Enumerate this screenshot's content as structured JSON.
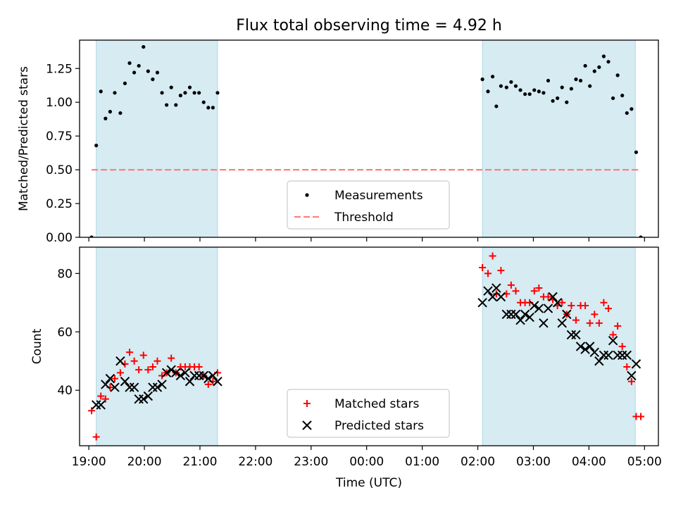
{
  "title": "Flux total observing time = 4.92 h",
  "colors": {
    "shade": "#add8e6",
    "measure": "#000000",
    "threshold": "#ff7f7f",
    "matched": "#ff0000",
    "predicted": "#000000"
  },
  "chart_data": [
    {
      "type": "scatter",
      "ylabel": "Matched/Predicted stars",
      "xlim": [
        "2023-01-01T18:50",
        "2023-01-02T05:15"
      ],
      "ylim": [
        0,
        1.46
      ],
      "yticks": [
        "0.00",
        "0.25",
        "0.50",
        "0.75",
        "1.00",
        "1.25"
      ],
      "ytick_values": [
        0,
        0.25,
        0.5,
        0.75,
        1.0,
        1.25
      ],
      "shaded_ranges": [
        [
          "2023-01-01T19:08",
          "2023-01-01T21:19"
        ],
        [
          "2023-01-02T02:05",
          "2023-01-02T04:50"
        ]
      ],
      "legend": {
        "placement": "lower center",
        "entries": [
          "Measurements",
          "Threshold"
        ]
      },
      "series": [
        {
          "name": "Measurements",
          "marker": "dot",
          "points": [
            [
              "2023-01-01T19:03",
              0.0
            ],
            [
              "2023-01-01T19:08",
              0.68
            ],
            [
              "2023-01-01T19:13",
              1.08
            ],
            [
              "2023-01-01T19:18",
              0.88
            ],
            [
              "2023-01-01T19:23",
              0.93
            ],
            [
              "2023-01-01T19:28",
              1.07
            ],
            [
              "2023-01-01T19:34",
              0.92
            ],
            [
              "2023-01-01T19:39",
              1.14
            ],
            [
              "2023-01-01T19:44",
              1.29
            ],
            [
              "2023-01-01T19:49",
              1.22
            ],
            [
              "2023-01-01T19:54",
              1.27
            ],
            [
              "2023-01-01T19:59",
              1.41
            ],
            [
              "2023-01-01T20:04",
              1.23
            ],
            [
              "2023-01-01T20:09",
              1.17
            ],
            [
              "2023-01-01T20:14",
              1.22
            ],
            [
              "2023-01-01T20:19",
              1.07
            ],
            [
              "2023-01-01T20:24",
              0.98
            ],
            [
              "2023-01-01T20:29",
              1.11
            ],
            [
              "2023-01-01T20:34",
              0.98
            ],
            [
              "2023-01-01T20:39",
              1.05
            ],
            [
              "2023-01-01T20:44",
              1.07
            ],
            [
              "2023-01-01T20:49",
              1.11
            ],
            [
              "2023-01-01T20:54",
              1.07
            ],
            [
              "2023-01-01T20:59",
              1.07
            ],
            [
              "2023-01-01T21:04",
              1.0
            ],
            [
              "2023-01-01T21:09",
              0.96
            ],
            [
              "2023-01-01T21:14",
              0.96
            ],
            [
              "2023-01-01T21:19",
              1.07
            ],
            [
              "2023-01-02T02:05",
              1.17
            ],
            [
              "2023-01-02T02:11",
              1.08
            ],
            [
              "2023-01-02T02:16",
              1.19
            ],
            [
              "2023-01-02T02:20",
              0.97
            ],
            [
              "2023-01-02T02:25",
              1.12
            ],
            [
              "2023-01-02T02:31",
              1.11
            ],
            [
              "2023-01-02T02:36",
              1.15
            ],
            [
              "2023-01-02T02:41",
              1.12
            ],
            [
              "2023-01-02T02:46",
              1.09
            ],
            [
              "2023-01-02T02:51",
              1.06
            ],
            [
              "2023-01-02T02:56",
              1.06
            ],
            [
              "2023-01-02T03:01",
              1.09
            ],
            [
              "2023-01-02T03:06",
              1.08
            ],
            [
              "2023-01-02T03:11",
              1.07
            ],
            [
              "2023-01-02T03:16",
              1.16
            ],
            [
              "2023-01-02T03:21",
              1.01
            ],
            [
              "2023-01-02T03:26",
              1.03
            ],
            [
              "2023-01-02T03:31",
              1.11
            ],
            [
              "2023-01-02T03:36",
              1.0
            ],
            [
              "2023-01-02T03:41",
              1.1
            ],
            [
              "2023-01-02T03:46",
              1.17
            ],
            [
              "2023-01-02T03:51",
              1.16
            ],
            [
              "2023-01-02T03:56",
              1.27
            ],
            [
              "2023-01-02T04:01",
              1.12
            ],
            [
              "2023-01-02T04:06",
              1.23
            ],
            [
              "2023-01-02T04:11",
              1.26
            ],
            [
              "2023-01-02T04:16",
              1.34
            ],
            [
              "2023-01-02T04:21",
              1.3
            ],
            [
              "2023-01-02T04:26",
              1.03
            ],
            [
              "2023-01-02T04:31",
              1.2
            ],
            [
              "2023-01-02T04:36",
              1.05
            ],
            [
              "2023-01-02T04:41",
              0.92
            ],
            [
              "2023-01-02T04:46",
              0.95
            ],
            [
              "2023-01-02T04:51",
              0.63
            ],
            [
              "2023-01-02T04:56",
              0.0
            ]
          ]
        },
        {
          "name": "Threshold",
          "marker": "dashed-line",
          "points": [
            [
              "2023-01-01T19:03",
              0.5
            ],
            [
              "2023-01-02T04:56",
              0.5
            ]
          ]
        }
      ]
    },
    {
      "type": "scatter",
      "ylabel": "Count",
      "xlabel": "Time (UTC)",
      "xlim": [
        "2023-01-01T18:50",
        "2023-01-02T05:15"
      ],
      "ylim": [
        21,
        89
      ],
      "yticks": [
        "40",
        "60",
        "80"
      ],
      "ytick_values": [
        40,
        60,
        80
      ],
      "xticks": [
        "19:00",
        "20:00",
        "21:00",
        "22:00",
        "23:00",
        "00:00",
        "01:00",
        "02:00",
        "03:00",
        "04:00",
        "05:00"
      ],
      "xtick_values": [
        "2023-01-01T19:00",
        "2023-01-01T20:00",
        "2023-01-01T21:00",
        "2023-01-01T22:00",
        "2023-01-01T23:00",
        "2023-01-02T00:00",
        "2023-01-02T01:00",
        "2023-01-02T02:00",
        "2023-01-02T03:00",
        "2023-01-02T04:00",
        "2023-01-02T05:00"
      ],
      "shaded_ranges": [
        [
          "2023-01-01T19:08",
          "2023-01-01T21:19"
        ],
        [
          "2023-01-02T02:05",
          "2023-01-02T04:50"
        ]
      ],
      "legend": {
        "placement": "lower center",
        "entries": [
          "Matched stars",
          "Predicted stars"
        ]
      },
      "series": [
        {
          "name": "Matched stars",
          "marker": "plus",
          "points": [
            [
              "2023-01-01T19:03",
              33
            ],
            [
              "2023-01-01T19:08",
              24
            ],
            [
              "2023-01-01T19:13",
              38
            ],
            [
              "2023-01-01T19:18",
              37
            ],
            [
              "2023-01-01T19:23",
              41
            ],
            [
              "2023-01-01T19:28",
              44
            ],
            [
              "2023-01-01T19:34",
              46
            ],
            [
              "2023-01-01T19:39",
              49
            ],
            [
              "2023-01-01T19:44",
              53
            ],
            [
              "2023-01-01T19:49",
              50
            ],
            [
              "2023-01-01T19:54",
              47
            ],
            [
              "2023-01-01T19:59",
              52
            ],
            [
              "2023-01-01T20:04",
              47
            ],
            [
              "2023-01-01T20:09",
              48
            ],
            [
              "2023-01-01T20:14",
              50
            ],
            [
              "2023-01-01T20:19",
              45
            ],
            [
              "2023-01-01T20:24",
              46
            ],
            [
              "2023-01-01T20:29",
              51
            ],
            [
              "2023-01-01T20:34",
              46
            ],
            [
              "2023-01-01T20:39",
              48
            ],
            [
              "2023-01-01T20:44",
              48
            ],
            [
              "2023-01-01T20:49",
              48
            ],
            [
              "2023-01-01T20:54",
              48
            ],
            [
              "2023-01-01T20:59",
              48
            ],
            [
              "2023-01-01T21:04",
              45
            ],
            [
              "2023-01-01T21:09",
              42
            ],
            [
              "2023-01-01T21:14",
              43
            ],
            [
              "2023-01-01T21:19",
              46
            ],
            [
              "2023-01-02T02:05",
              82
            ],
            [
              "2023-01-02T02:11",
              80
            ],
            [
              "2023-01-02T02:16",
              86
            ],
            [
              "2023-01-02T02:20",
              73
            ],
            [
              "2023-01-02T02:25",
              81
            ],
            [
              "2023-01-02T02:31",
              73
            ],
            [
              "2023-01-02T02:36",
              76
            ],
            [
              "2023-01-02T02:41",
              74
            ],
            [
              "2023-01-02T02:46",
              70
            ],
            [
              "2023-01-02T02:51",
              70
            ],
            [
              "2023-01-02T02:56",
              70
            ],
            [
              "2023-01-02T03:01",
              74
            ],
            [
              "2023-01-02T03:06",
              75
            ],
            [
              "2023-01-02T03:11",
              72
            ],
            [
              "2023-01-02T03:16",
              72
            ],
            [
              "2023-01-02T03:21",
              71
            ],
            [
              "2023-01-02T03:26",
              69
            ],
            [
              "2023-01-02T03:31",
              70
            ],
            [
              "2023-01-02T03:36",
              66
            ],
            [
              "2023-01-02T03:41",
              69
            ],
            [
              "2023-01-02T03:46",
              64
            ],
            [
              "2023-01-02T03:51",
              69
            ],
            [
              "2023-01-02T03:56",
              69
            ],
            [
              "2023-01-02T04:01",
              63
            ],
            [
              "2023-01-02T04:06",
              66
            ],
            [
              "2023-01-02T04:11",
              63
            ],
            [
              "2023-01-02T04:16",
              70
            ],
            [
              "2023-01-02T04:21",
              68
            ],
            [
              "2023-01-02T04:26",
              59
            ],
            [
              "2023-01-02T04:31",
              62
            ],
            [
              "2023-01-02T04:36",
              55
            ],
            [
              "2023-01-02T04:41",
              48
            ],
            [
              "2023-01-02T04:46",
              43
            ],
            [
              "2023-01-02T04:51",
              31
            ],
            [
              "2023-01-02T04:56",
              31
            ]
          ]
        },
        {
          "name": "Predicted stars",
          "marker": "x",
          "points": [
            [
              "2023-01-01T19:08",
              35
            ],
            [
              "2023-01-01T19:13",
              35
            ],
            [
              "2023-01-01T19:18",
              42
            ],
            [
              "2023-01-01T19:23",
              44
            ],
            [
              "2023-01-01T19:28",
              41
            ],
            [
              "2023-01-01T19:34",
              50
            ],
            [
              "2023-01-01T19:39",
              43
            ],
            [
              "2023-01-01T19:44",
              41
            ],
            [
              "2023-01-01T19:49",
              41
            ],
            [
              "2023-01-01T19:54",
              37
            ],
            [
              "2023-01-01T19:59",
              37
            ],
            [
              "2023-01-01T20:04",
              38
            ],
            [
              "2023-01-01T20:09",
              41
            ],
            [
              "2023-01-01T20:14",
              41
            ],
            [
              "2023-01-01T20:19",
              42
            ],
            [
              "2023-01-01T20:24",
              46
            ],
            [
              "2023-01-01T20:29",
              47
            ],
            [
              "2023-01-01T20:34",
              46
            ],
            [
              "2023-01-01T20:39",
              45
            ],
            [
              "2023-01-01T20:44",
              46
            ],
            [
              "2023-01-01T20:49",
              43
            ],
            [
              "2023-01-01T20:54",
              45
            ],
            [
              "2023-01-01T20:59",
              45
            ],
            [
              "2023-01-01T21:04",
              45
            ],
            [
              "2023-01-01T21:09",
              44
            ],
            [
              "2023-01-01T21:14",
              45
            ],
            [
              "2023-01-01T21:19",
              43
            ],
            [
              "2023-01-02T02:05",
              70
            ],
            [
              "2023-01-02T02:11",
              74
            ],
            [
              "2023-01-02T02:16",
              72
            ],
            [
              "2023-01-02T02:20",
              75
            ],
            [
              "2023-01-02T02:25",
              72
            ],
            [
              "2023-01-02T02:31",
              66
            ],
            [
              "2023-01-02T02:36",
              66
            ],
            [
              "2023-01-02T02:41",
              66
            ],
            [
              "2023-01-02T02:46",
              64
            ],
            [
              "2023-01-02T02:51",
              66
            ],
            [
              "2023-01-02T02:56",
              65
            ],
            [
              "2023-01-02T03:01",
              69
            ],
            [
              "2023-01-02T03:06",
              68
            ],
            [
              "2023-01-02T03:11",
              63
            ],
            [
              "2023-01-02T03:16",
              68
            ],
            [
              "2023-01-02T03:21",
              72
            ],
            [
              "2023-01-02T03:26",
              70
            ],
            [
              "2023-01-02T03:31",
              63
            ],
            [
              "2023-01-02T03:36",
              66
            ],
            [
              "2023-01-02T03:41",
              59
            ],
            [
              "2023-01-02T03:46",
              59
            ],
            [
              "2023-01-02T03:51",
              55
            ],
            [
              "2023-01-02T03:56",
              54
            ],
            [
              "2023-01-02T04:01",
              55
            ],
            [
              "2023-01-02T04:06",
              53
            ],
            [
              "2023-01-02T04:11",
              50
            ],
            [
              "2023-01-02T04:16",
              52
            ],
            [
              "2023-01-02T04:21",
              52
            ],
            [
              "2023-01-02T04:26",
              57
            ],
            [
              "2023-01-02T04:31",
              52
            ],
            [
              "2023-01-02T04:36",
              52
            ],
            [
              "2023-01-02T04:41",
              52
            ],
            [
              "2023-01-02T04:46",
              45
            ],
            [
              "2023-01-02T04:51",
              49
            ]
          ]
        }
      ]
    }
  ]
}
